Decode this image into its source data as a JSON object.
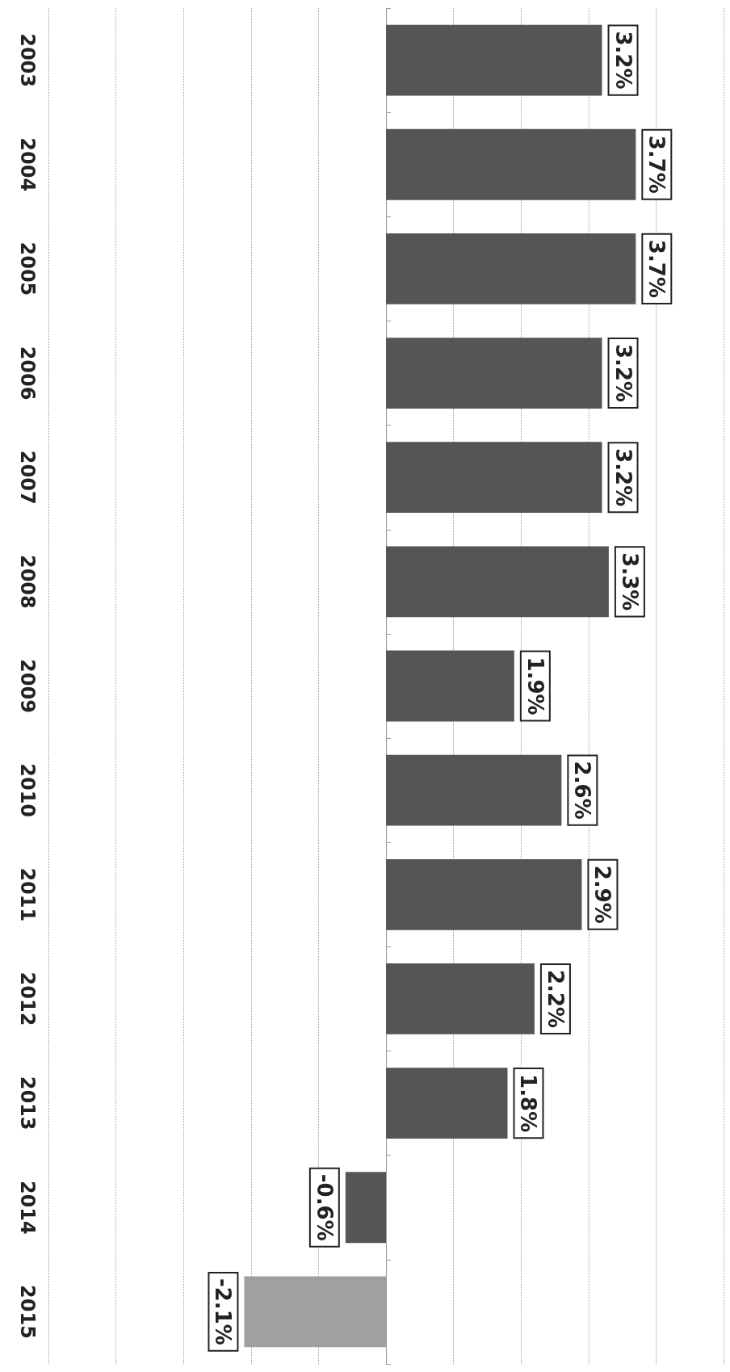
{
  "chart_data": {
    "type": "bar",
    "orientation": "horizontal",
    "categories": [
      "2003",
      "2004",
      "2005",
      "2006",
      "2007",
      "2008",
      "2009",
      "2010",
      "2011",
      "2012",
      "2013",
      "2014",
      "2015"
    ],
    "values": [
      3.2,
      3.7,
      3.7,
      3.2,
      3.2,
      3.3,
      1.9,
      2.6,
      2.9,
      2.2,
      1.8,
      -0.6,
      -2.1
    ],
    "value_labels": [
      "3.2%",
      "3.7%",
      "3.7%",
      "3.2%",
      "3.2%",
      "3.3%",
      "1.9%",
      "2.6%",
      "2.9%",
      "2.2%",
      "1.8%",
      "-0.6%",
      "-2.1%"
    ],
    "colors": [
      "#555555",
      "#555555",
      "#555555",
      "#555555",
      "#555555",
      "#555555",
      "#555555",
      "#555555",
      "#555555",
      "#555555",
      "#555555",
      "#555555",
      "#a0a0a0"
    ],
    "grid": "x",
    "tick_labels": "y"
  }
}
